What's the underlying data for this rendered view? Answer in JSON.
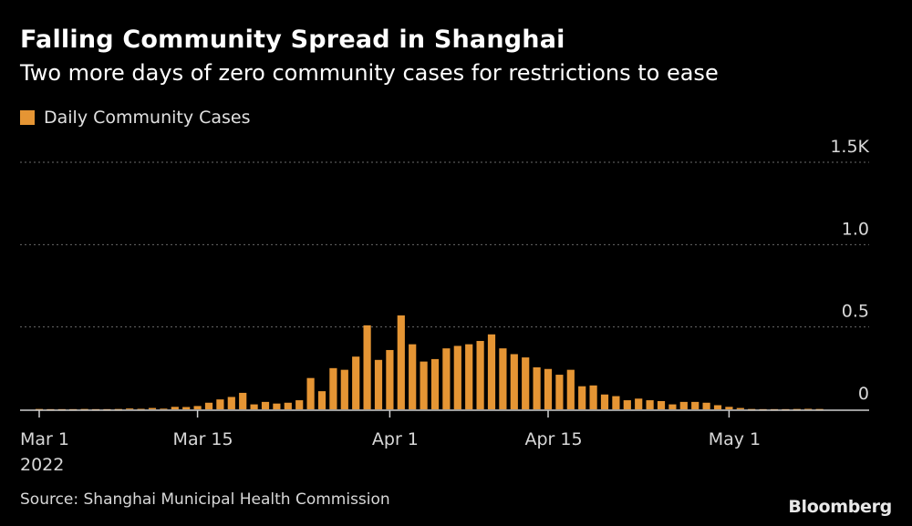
{
  "header": {
    "title": "Falling Community Spread in Shanghai",
    "subtitle": "Two more days of zero community cases for restrictions to ease"
  },
  "legend": {
    "label": "Daily Community Cases",
    "color": "#e59534"
  },
  "footer": {
    "source": "Source: Shanghai Municipal Health Commission",
    "brand": "Bloomberg"
  },
  "chart_data": {
    "type": "bar",
    "series_name": "Daily Community Cases",
    "color": "#e59534",
    "categories": [
      "2022-03-01",
      "2022-03-02",
      "2022-03-03",
      "2022-03-04",
      "2022-03-05",
      "2022-03-06",
      "2022-03-07",
      "2022-03-08",
      "2022-03-09",
      "2022-03-10",
      "2022-03-11",
      "2022-03-12",
      "2022-03-13",
      "2022-03-14",
      "2022-03-15",
      "2022-03-16",
      "2022-03-17",
      "2022-03-18",
      "2022-03-19",
      "2022-03-20",
      "2022-03-21",
      "2022-03-22",
      "2022-03-23",
      "2022-03-24",
      "2022-03-25",
      "2022-03-26",
      "2022-03-27",
      "2022-03-28",
      "2022-03-29",
      "2022-03-30",
      "2022-03-31",
      "2022-04-01",
      "2022-04-02",
      "2022-04-03",
      "2022-04-04",
      "2022-04-05",
      "2022-04-06",
      "2022-04-07",
      "2022-04-08",
      "2022-04-09",
      "2022-04-10",
      "2022-04-11",
      "2022-04-12",
      "2022-04-13",
      "2022-04-14",
      "2022-04-15",
      "2022-04-16",
      "2022-04-17",
      "2022-04-18",
      "2022-04-19",
      "2022-04-20",
      "2022-04-21",
      "2022-04-22",
      "2022-04-23",
      "2022-04-24",
      "2022-04-25",
      "2022-04-26",
      "2022-04-27",
      "2022-04-28",
      "2022-04-29",
      "2022-04-30",
      "2022-05-01",
      "2022-05-02",
      "2022-05-03",
      "2022-05-04",
      "2022-05-05",
      "2022-05-06",
      "2022-05-07",
      "2022-05-08",
      "2022-05-09"
    ],
    "values": [
      2,
      1,
      1,
      1,
      2,
      1,
      1,
      2,
      5,
      3,
      8,
      4,
      15,
      14,
      20,
      40,
      60,
      75,
      100,
      30,
      45,
      35,
      40,
      55,
      190,
      110,
      250,
      240,
      320,
      510,
      300,
      360,
      570,
      395,
      290,
      305,
      370,
      385,
      395,
      415,
      455,
      370,
      335,
      315,
      255,
      245,
      210,
      240,
      140,
      145,
      90,
      80,
      55,
      65,
      55,
      50,
      30,
      45,
      45,
      40,
      25,
      15,
      8,
      2,
      1,
      1,
      1,
      2,
      3,
      2
    ],
    "plotted_values_note": "",
    "x_tick_labels": [
      "Mar 1",
      "Mar 15",
      "Apr 1",
      "Apr 15",
      "May 1"
    ],
    "x_tick_year": "2022",
    "y_tick_labels": [
      "0",
      "0.5",
      "1.0",
      "1.5K"
    ],
    "ylim": [
      0,
      1500
    ],
    "title": "Falling Community Spread in Shanghai",
    "xlabel": "",
    "ylabel": ""
  }
}
